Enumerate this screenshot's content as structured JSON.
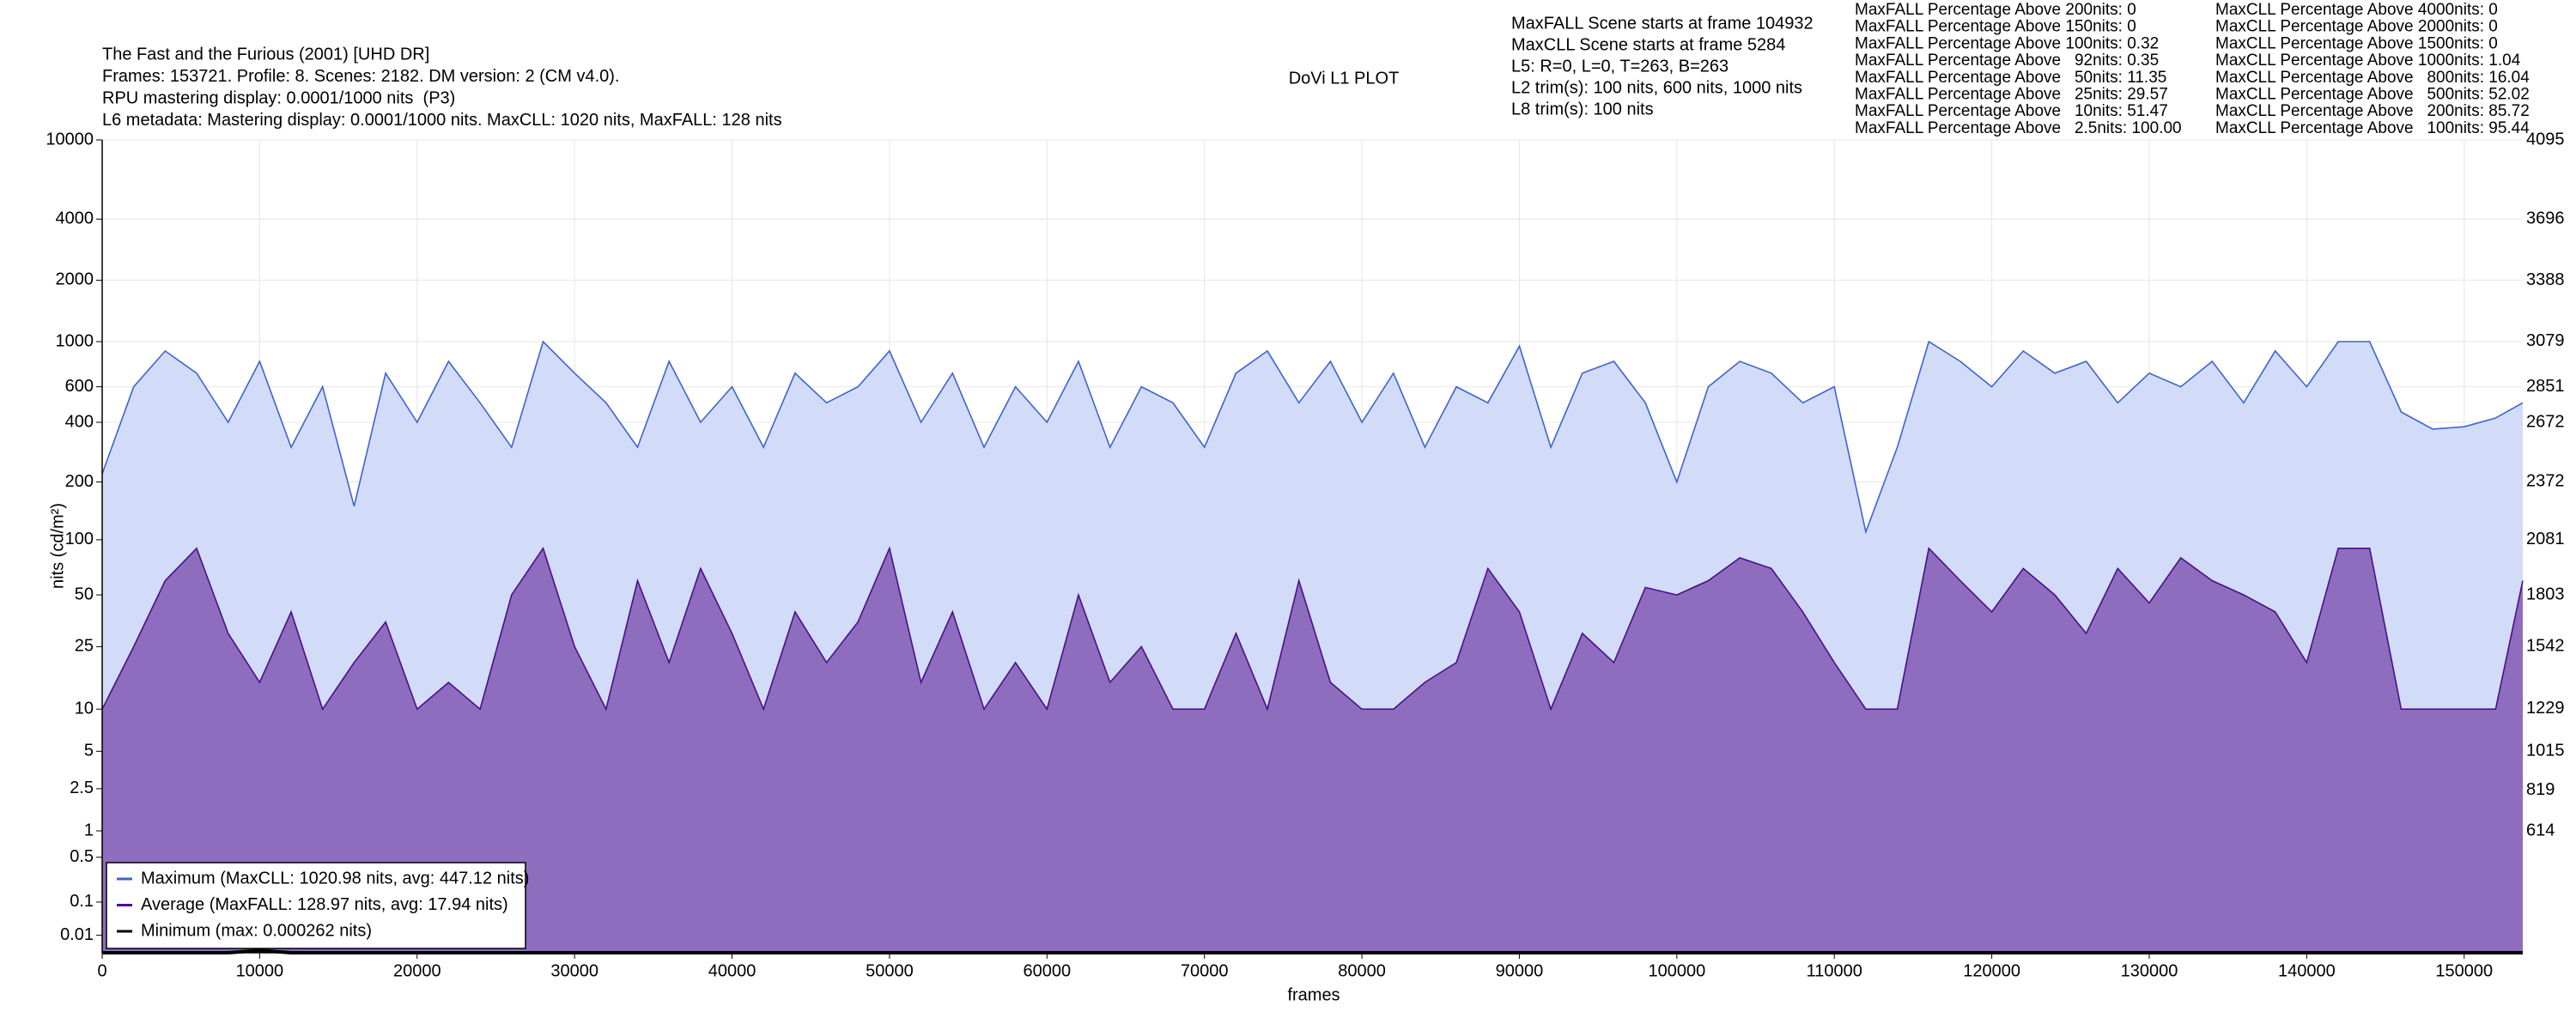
{
  "chart_data": {
    "type": "line",
    "title": "DoVi L1 PLOT",
    "header": [
      "The Fast and the Furious (2001) [UHD DR]",
      "Frames: 153721. Profile: 8. Scenes: 2182. DM version: 2 (CM v4.0).",
      "RPU mastering display: 0.0001/1000 nits  (P3)",
      "L6 metadata: Mastering display: 0.0001/1000 nits. MaxCLL: 1020 nits, MaxFALL: 128 nits"
    ],
    "info": [
      "MaxFALL Scene starts at frame 104932",
      "MaxCLL Scene starts at frame 5284",
      "L5: R=0, L=0, T=263, B=263",
      "L2 trim(s): 100 nits, 600 nits, 1000 nits",
      "L8 trim(s): 100 nits"
    ],
    "maxfall_stats": [
      "MaxFALL Percentage Above 200nits: 0",
      "MaxFALL Percentage Above 150nits: 0",
      "MaxFALL Percentage Above 100nits: 0.32",
      "MaxFALL Percentage Above   92nits: 0.35",
      "MaxFALL Percentage Above   50nits: 11.35",
      "MaxFALL Percentage Above   25nits: 29.57",
      "MaxFALL Percentage Above   10nits: 51.47",
      "MaxFALL Percentage Above   2.5nits: 100.00"
    ],
    "maxcll_stats": [
      "MaxCLL Percentage Above 4000nits: 0",
      "MaxCLL Percentage Above 2000nits: 0",
      "MaxCLL Percentage Above 1500nits: 0",
      "MaxCLL Percentage Above 1000nits: 1.04",
      "MaxCLL Percentage Above   800nits: 16.04",
      "MaxCLL Percentage Above   500nits: 52.02",
      "MaxCLL Percentage Above   200nits: 85.72",
      "MaxCLL Percentage Above   100nits: 95.44"
    ],
    "x_label": "frames",
    "y_label": "nits (cd/m²)",
    "yscale": "pq",
    "grid": true,
    "legend": "lower left",
    "xlim": [
      0,
      153721
    ],
    "xticks": [
      0,
      10000,
      20000,
      30000,
      40000,
      50000,
      60000,
      70000,
      80000,
      90000,
      100000,
      110000,
      120000,
      130000,
      140000,
      150000
    ],
    "ylim": [
      0,
      10000
    ],
    "yticks": [
      0.01,
      0.1,
      0.5,
      1,
      2.5,
      5,
      10,
      25,
      50,
      100,
      200,
      400,
      600,
      1000,
      2000,
      4000,
      10000
    ],
    "y2lim": [
      0,
      4095
    ],
    "y2ticks": [
      614,
      819,
      1015,
      1229,
      1542,
      1803,
      2081,
      2372,
      2672,
      2851,
      3079,
      3388,
      3696,
      4095
    ],
    "x": [
      0,
      2000,
      4000,
      6000,
      8000,
      10000,
      12000,
      14000,
      16000,
      18000,
      20000,
      22000,
      24000,
      26000,
      28000,
      30000,
      32000,
      34000,
      36000,
      38000,
      40000,
      42000,
      44000,
      46000,
      48000,
      50000,
      52000,
      54000,
      56000,
      58000,
      60000,
      62000,
      64000,
      66000,
      68000,
      70000,
      72000,
      74000,
      76000,
      78000,
      80000,
      82000,
      84000,
      86000,
      88000,
      90000,
      92000,
      94000,
      96000,
      98000,
      100000,
      102000,
      104000,
      106000,
      108000,
      110000,
      112000,
      114000,
      116000,
      118000,
      120000,
      122000,
      124000,
      126000,
      128000,
      130000,
      132000,
      134000,
      136000,
      138000,
      140000,
      142000,
      144000,
      146000,
      148000,
      150000,
      152000,
      153721
    ],
    "series": [
      {
        "name": "Maximum (MaxCLL: 1020.98 nits, avg: 447.12 nits)",
        "color": "#3c64d2",
        "fill": "#d2dcf8",
        "values": [
          220,
          600,
          900,
          700,
          400,
          800,
          300,
          600,
          150,
          700,
          400,
          800,
          500,
          300,
          1000,
          700,
          500,
          300,
          800,
          400,
          600,
          300,
          700,
          500,
          600,
          900,
          400,
          700,
          300,
          600,
          400,
          800,
          300,
          600,
          500,
          300,
          700,
          900,
          500,
          800,
          400,
          700,
          300,
          600,
          500,
          950,
          300,
          700,
          800,
          500,
          200,
          600,
          800,
          700,
          500,
          600,
          110,
          300,
          1000,
          800,
          600,
          900,
          700,
          800,
          500,
          700,
          600,
          800,
          500,
          900,
          600,
          1000,
          1000,
          450,
          370,
          380,
          420,
          500
        ]
      },
      {
        "name": "Average (MaxFALL: 128.97 nits, avg: 17.94 nits)",
        "color": "#4b0f8a",
        "fill": "#8e6cbe",
        "values": [
          10,
          25,
          60,
          90,
          30,
          15,
          40,
          10,
          20,
          35,
          10,
          15,
          10,
          50,
          90,
          25,
          10,
          60,
          20,
          70,
          30,
          10,
          40,
          20,
          35,
          90,
          15,
          40,
          10,
          20,
          10,
          50,
          15,
          25,
          10,
          10,
          30,
          10,
          60,
          15,
          10,
          10,
          15,
          20,
          70,
          40,
          10,
          30,
          20,
          55,
          50,
          60,
          80,
          70,
          40,
          20,
          10,
          10,
          90,
          60,
          40,
          70,
          50,
          30,
          70,
          45,
          80,
          60,
          50,
          40,
          20,
          90,
          90,
          10,
          10,
          10,
          10,
          60
        ]
      },
      {
        "name": "Minimum (max: 0.000262 nits)",
        "color": "#000000",
        "fill": "none",
        "values": [
          0,
          0,
          0,
          0,
          0,
          0.000262,
          0,
          0,
          0,
          0,
          0,
          0,
          0,
          0,
          0,
          0,
          0,
          0,
          0,
          0,
          0,
          0,
          0,
          0,
          0,
          0,
          0,
          0,
          0,
          0,
          0,
          0,
          0,
          0,
          0,
          0,
          0,
          0,
          0,
          0,
          0,
          0,
          0,
          0,
          0,
          0,
          0,
          0,
          0,
          0,
          0,
          0,
          0,
          0,
          0,
          0,
          0,
          0,
          0,
          0,
          0,
          0,
          0,
          0,
          0,
          0,
          0,
          0,
          0,
          0,
          0,
          0,
          0,
          0,
          0,
          0,
          0,
          0
        ]
      }
    ]
  }
}
